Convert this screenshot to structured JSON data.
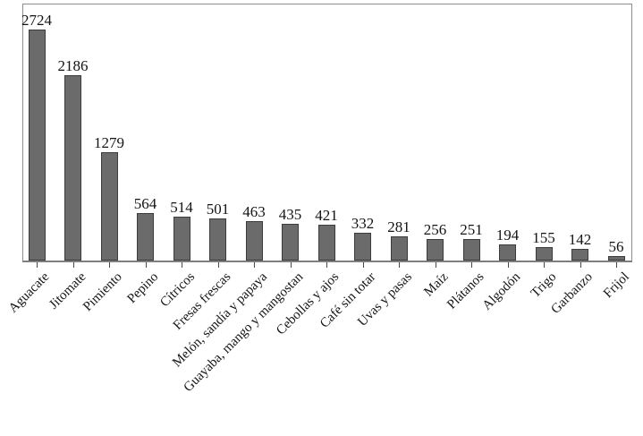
{
  "chart_data": {
    "type": "bar",
    "categories": [
      "Aguacate",
      "Jitomate",
      "Pimiento",
      "Pepino",
      "Cítricos",
      "Fresas frescas",
      "Melón, sandía y papaya",
      "Guayaba, mango y mangostan",
      "Cebollas y ajos",
      "Café sin totar",
      "Uvas y pasas",
      "Maíz",
      "Plátanos",
      "Algodón",
      "Trigo",
      "Garbanzo",
      "Frijol"
    ],
    "values": [
      2724,
      2186,
      1279,
      564,
      514,
      501,
      463,
      435,
      421,
      332,
      281,
      256,
      251,
      194,
      155,
      142,
      56
    ],
    "title": "",
    "xlabel": "",
    "ylabel": "",
    "ylim": [
      0,
      3030
    ],
    "grid": false,
    "legend": false,
    "value_labels_position": "above-bars",
    "x_tick_rotation_deg": 45,
    "colors": {
      "bar_fill": "#6b6b6b",
      "bar_border": "#3c3c3c",
      "plot_border": "#8c8c8c",
      "text": "#141414",
      "tick": "#4a4a4a"
    }
  }
}
